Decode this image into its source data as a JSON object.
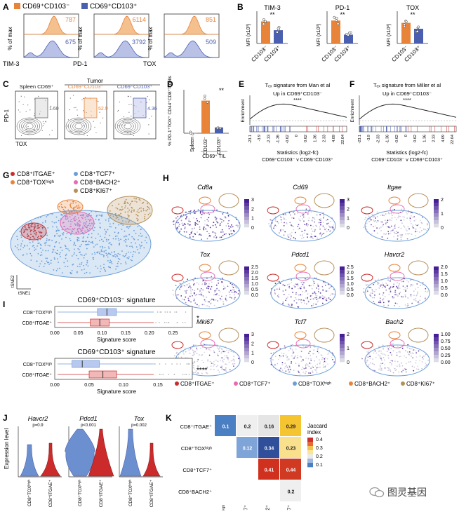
{
  "colors": {
    "orange": "#e8843a",
    "blue": "#4b5fb0",
    "red": "#cc2b2b",
    "green": "#9b9b4a",
    "lightblue": "#6c9fd9",
    "pink": "#e66bb3",
    "brown": "#b5905a"
  },
  "panelA": {
    "label": "A",
    "legend": [
      "CD69⁺CD103⁻",
      "CD69⁺CD103⁺"
    ],
    "ylabel": "% of max",
    "hists": [
      {
        "marker": "TIM-3",
        "top": "787",
        "bottom": "675"
      },
      {
        "marker": "PD-1",
        "top": "6114",
        "bottom": "3792"
      },
      {
        "marker": "TOX",
        "top": "851",
        "bottom": "509"
      }
    ]
  },
  "panelB": {
    "label": "B",
    "ylabel": "MFI (x10³)",
    "sig": "**",
    "xcats": [
      "CD103⁻",
      "CD103⁺"
    ],
    "bars": [
      {
        "title": "TIM-3",
        "values": [
          0.75,
          0.45
        ]
      },
      {
        "title": "PD-1",
        "values": [
          0.78,
          0.3
        ]
      },
      {
        "title": "TOX",
        "values": [
          0.7,
          0.5
        ]
      }
    ]
  },
  "panelC": {
    "label": "C",
    "tumor": "Tumor",
    "ylabel": "PD-1",
    "xlabel": "TOX",
    "plots": [
      {
        "title": "Spleen CD69⁺",
        "pct": "1.50"
      },
      {
        "title": "CD69⁺CD103⁻",
        "pct": "52.9"
      },
      {
        "title": "CD69⁺CD103⁺",
        "pct": "4.36"
      }
    ]
  },
  "panelD": {
    "label": "D",
    "ylabel": "% PD-1⁺TOX⁺ CD44⁺CD8⁺T cells",
    "cats": [
      "Spleen",
      "CD103⁻",
      "CD103⁺"
    ],
    "values": [
      0.5,
      45,
      8
    ],
    "sig": "**",
    "til": "CD69⁺ TIL"
  },
  "panelE": {
    "label": "E",
    "title": "Tₑₓ signature from Man et al",
    "up": "Up in CD69⁺CD103⁻",
    "stars": "****",
    "ylabel": "Enrichment",
    "xlabel": "Statistics (log2-fc)",
    "ticks": [
      "-23.1",
      "-3.9",
      "-2.33",
      "-1.36",
      "-0.62",
      "0",
      "0.62",
      "1.36",
      "2.33",
      "4.09",
      "22.04"
    ],
    "foot": "CD69⁺CD103⁻  v  CD69⁺CD103⁺"
  },
  "panelF": {
    "label": "F",
    "title": "Tₑₓ signature from Miller et al",
    "up": "Up in CD69⁺CD103⁻",
    "stars": "****",
    "ylabel": "Enrichment",
    "xlabel": "Statistics (log2-fc)",
    "ticks": [
      "-23.1",
      "-3.9",
      "-2.33",
      "-1.36",
      "-0.62",
      "0",
      "0.62",
      "1.36",
      "2.33",
      "4.09",
      "22.04"
    ],
    "foot": "CD69⁺CD103⁻  v  CD69⁺CD103⁺"
  },
  "panelG": {
    "label": "G",
    "legend": [
      "CD8⁺ITGAE⁺",
      "CD8⁺TCF7⁺",
      "CD8⁺TOXʰⁱᵍʰ",
      "CD8⁺BACH2⁺",
      "CD8⁺KI67⁺"
    ],
    "tsne1": "tSNE1",
    "tsne2": "tSNE2"
  },
  "panelH": {
    "label": "H",
    "genes": [
      {
        "name": "Cd8a",
        "scale": [
          "3",
          "2",
          "1",
          "0"
        ]
      },
      {
        "name": "Cd69",
        "scale": [
          "3",
          "2",
          "1",
          "0"
        ]
      },
      {
        "name": "Itgae",
        "scale": [
          "2",
          "1",
          "0"
        ]
      },
      {
        "name": "Tox",
        "scale": [
          "2.5",
          "2.0",
          "1.5",
          "1.0",
          "0.5",
          "0.0"
        ]
      },
      {
        "name": "Pdcd1",
        "scale": [
          "2.5",
          "2.0",
          "1.5",
          "1.0",
          "0.5",
          "0.0"
        ]
      },
      {
        "name": "Havcr2",
        "scale": [
          "2.0",
          "1.5",
          "1.0",
          "0.5",
          "0.0"
        ]
      },
      {
        "name": "Mki67",
        "scale": [
          "3",
          "2",
          "1",
          "0"
        ]
      },
      {
        "name": "Tcf7",
        "scale": [
          "2",
          "1",
          "0"
        ]
      },
      {
        "name": "Bach2",
        "scale": [
          "1.00",
          "0.75",
          "0.50",
          "0.25",
          "0.00"
        ]
      }
    ],
    "legend": [
      "CD8⁺ITGAE⁺",
      "CD8⁺TCF7⁺",
      "CD8⁺TOXʰⁱᵍʰ",
      "CD8⁺BACH2⁺",
      "CD8⁺KI67⁺"
    ]
  },
  "panelI": {
    "label": "I",
    "box1": {
      "title": "CD69⁺CD103⁻ signature",
      "sig": "*",
      "ticks": [
        "0.00",
        "0.05",
        "0.10",
        "0.15",
        "0.20",
        "0.25"
      ]
    },
    "box2": {
      "title": "CD69⁺CD103⁺ signature",
      "sig": "****",
      "ticks": [
        "0.00",
        "0.05",
        "0.10",
        "0.15"
      ]
    },
    "rows": [
      "CD8⁺TOXʰⁱᵍʰ",
      "CD8⁺ITGAE⁺"
    ],
    "xlabel": "Signature score"
  },
  "panelJ": {
    "label": "J",
    "ylabel": "Expression level",
    "violins": [
      {
        "gene": "Havcr2",
        "p": "p=0.9"
      },
      {
        "gene": "Pdcd1",
        "p": "p<0.001"
      },
      {
        "gene": "Tox",
        "p": "p=0.002"
      }
    ],
    "xcats": [
      "CD8⁺TOXʰⁱᵍʰ",
      "CD8⁺ITGAE⁺"
    ]
  },
  "panelK": {
    "label": "K",
    "rows": [
      "CD8⁺ITGAE⁺",
      "CD8⁺TOXʰⁱᵍʰ",
      "CD8⁺TCF7⁺",
      "CD8⁺BACH2⁺"
    ],
    "cols": [
      "CD8⁺TOXʰⁱᵍʰ",
      "CD8⁺TCF7⁺",
      "CD8⁺BACH2⁺",
      "CD8⁺KI67⁺"
    ],
    "cells": [
      [
        "0.1",
        "0.2",
        "0.16",
        "0.29"
      ],
      [
        "",
        "0.12",
        "0.34",
        "0.23"
      ],
      [
        "",
        "",
        "0.41",
        "0.44"
      ],
      [
        "",
        "",
        "",
        "0.2"
      ]
    ],
    "legend_title": "Jaccard index",
    "legend_ticks": [
      "0.4",
      "0.3",
      "0.2",
      "0.1"
    ]
  },
  "watermark": "图灵基因"
}
